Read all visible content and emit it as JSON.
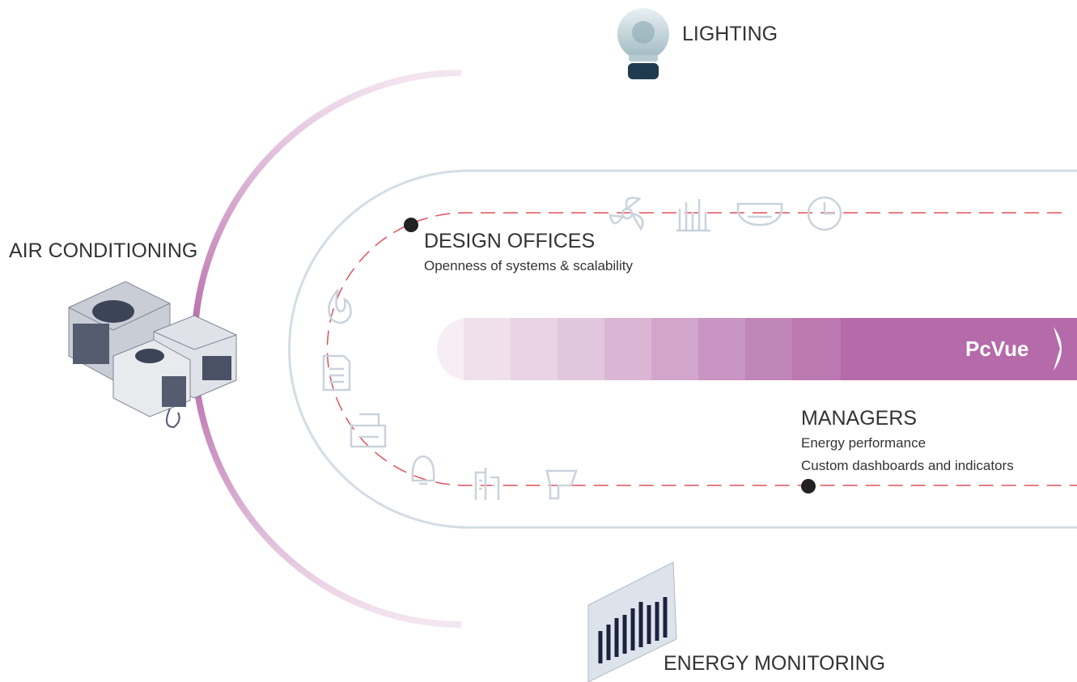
{
  "lighting": {
    "title": "LIGHTING"
  },
  "air_conditioning": {
    "title": "AIR CONDITIONING"
  },
  "design_offices": {
    "title": "DESIGN OFFICES",
    "subtitle": "Openness of systems & scalability"
  },
  "brand": {
    "logo": "PcVue"
  },
  "managers": {
    "title": "MANAGERS",
    "lines": [
      "Energy performance",
      "Custom dashboards and indicators"
    ]
  },
  "energy_monitoring": {
    "title": "ENERGY MONITORING"
  }
}
